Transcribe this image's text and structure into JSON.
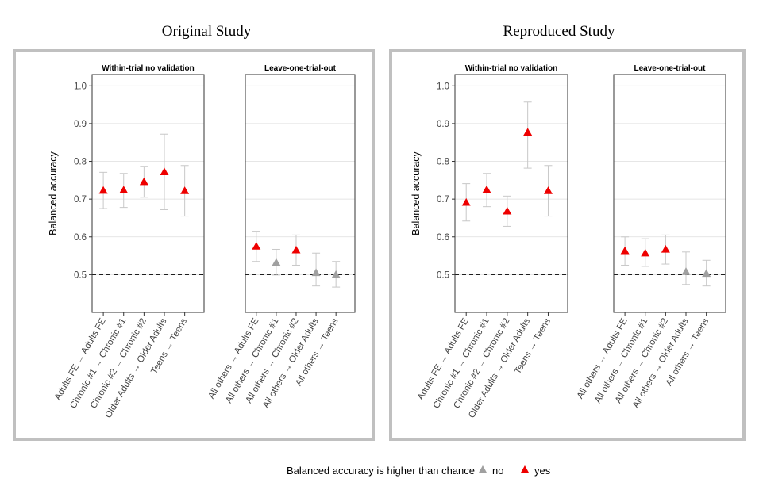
{
  "panels": [
    {
      "title": "Original Study",
      "chart_data": [
        {
          "type": "scatter",
          "title": "Within-trial no validation",
          "ylabel": "Balanced accuracy",
          "ylim": [
            0.4,
            1.03
          ],
          "yticks": [
            0.5,
            0.6,
            0.7,
            0.8,
            0.9,
            1.0
          ],
          "ytick_labels": [
            "0.5",
            "0.6",
            "0.7",
            "0.8",
            "0.9",
            "1.0"
          ],
          "chance_level": 0.5,
          "grid": true,
          "categories": [
            "Adults FE → Adults FE",
            "Chronic #1 → Chronic #1",
            "Chronic #2 → Chronic #2",
            "Older Adults → Older Adults",
            "Teens → Teens"
          ],
          "values": [
            0.723,
            0.724,
            0.746,
            0.772,
            0.722
          ],
          "ci_low": [
            0.675,
            0.678,
            0.705,
            0.672,
            0.655
          ],
          "ci_high": [
            0.771,
            0.768,
            0.787,
            0.872,
            0.789
          ],
          "above_chance": [
            "yes",
            "yes",
            "yes",
            "yes",
            "yes"
          ]
        },
        {
          "type": "scatter",
          "title": "Leave-one-trial-out",
          "ylim": [
            0.4,
            1.03
          ],
          "chance_level": 0.5,
          "grid": true,
          "categories": [
            "All others → Adults FE",
            "All others → Chronic #1",
            "All others → Chronic #2",
            "All others → Older Adults",
            "All others → Teens"
          ],
          "values": [
            0.575,
            0.532,
            0.565,
            0.505,
            0.5
          ],
          "ci_low": [
            0.535,
            0.499,
            0.525,
            0.47,
            0.467
          ],
          "ci_high": [
            0.615,
            0.567,
            0.605,
            0.557,
            0.535
          ],
          "above_chance": [
            "yes",
            "no",
            "yes",
            "no",
            "no"
          ]
        }
      ]
    },
    {
      "title": "Reproduced Study",
      "chart_data": [
        {
          "type": "scatter",
          "title": "Within-trial no validation",
          "ylabel": "Balanced accuracy",
          "ylim": [
            0.4,
            1.03
          ],
          "yticks": [
            0.5,
            0.6,
            0.7,
            0.8,
            0.9,
            1.0
          ],
          "ytick_labels": [
            "0.5",
            "0.6",
            "0.7",
            "0.8",
            "0.9",
            "1.0"
          ],
          "chance_level": 0.5,
          "grid": true,
          "categories": [
            "Adults FE → Adults FE",
            "Chronic #1 → Chronic #1",
            "Chronic #2 → Chronic #2",
            "Older Adults → Older Adults",
            "Teens → Teens"
          ],
          "values": [
            0.691,
            0.725,
            0.668,
            0.877,
            0.722
          ],
          "ci_low": [
            0.642,
            0.68,
            0.628,
            0.782,
            0.655
          ],
          "ci_high": [
            0.741,
            0.768,
            0.708,
            0.957,
            0.789
          ],
          "above_chance": [
            "yes",
            "yes",
            "yes",
            "yes",
            "yes"
          ]
        },
        {
          "type": "scatter",
          "title": "Leave-one-trial-out",
          "ylim": [
            0.4,
            1.03
          ],
          "chance_level": 0.5,
          "grid": true,
          "categories": [
            "All others → Adults FE",
            "All others → Chronic #1",
            "All others → Chronic #2",
            "All others → Older Adults",
            "All others → Teens"
          ],
          "values": [
            0.563,
            0.557,
            0.567,
            0.508,
            0.503
          ],
          "ci_low": [
            0.525,
            0.522,
            0.528,
            0.474,
            0.47
          ],
          "ci_high": [
            0.6,
            0.595,
            0.605,
            0.56,
            0.538
          ],
          "above_chance": [
            "yes",
            "yes",
            "yes",
            "no",
            "no"
          ]
        }
      ]
    }
  ],
  "legend": {
    "title": "Balanced accuracy is higher than chance",
    "items": [
      {
        "label": "no",
        "color": "#a0a0a0"
      },
      {
        "label": "yes",
        "color": "#ee0000"
      }
    ]
  },
  "colors": {
    "yes": "#ee0000",
    "no": "#a0a0a0",
    "errorbar": "#c8c8c8",
    "grid": "#dedede",
    "frame": "#c0c0c0"
  }
}
